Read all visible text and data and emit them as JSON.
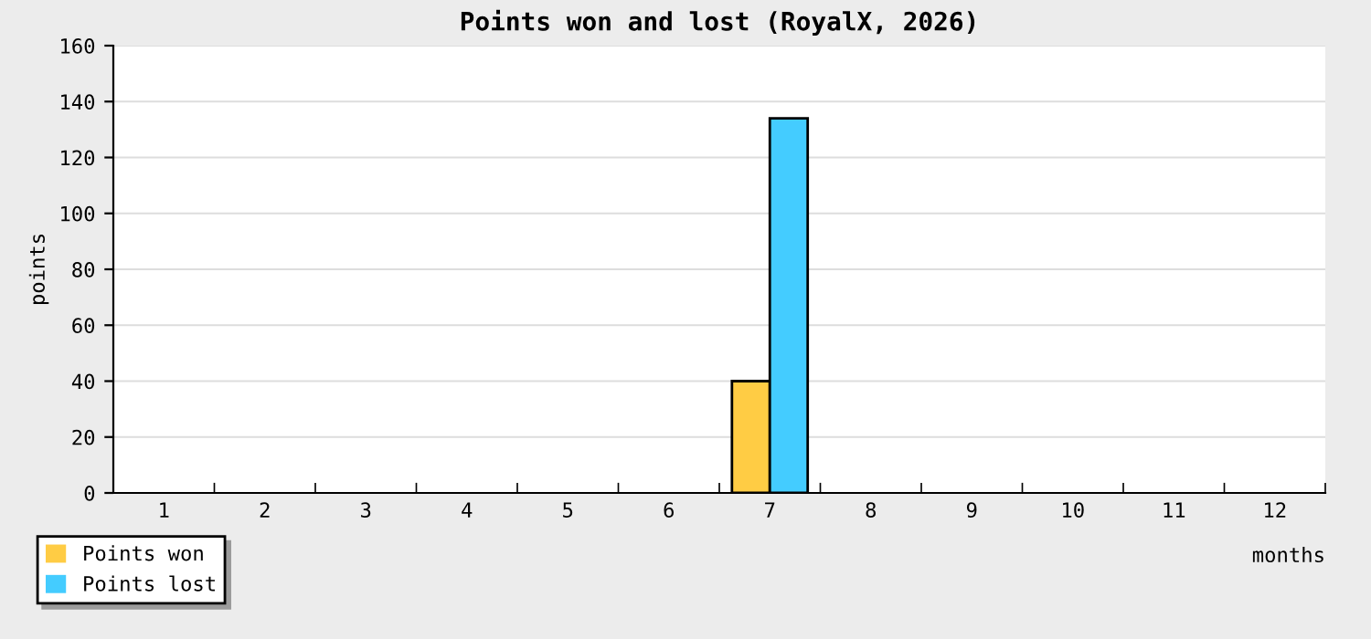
{
  "chart_data": {
    "type": "bar",
    "title": "Points won and lost (RoyalX, 2026)",
    "xlabel": "months",
    "ylabel": "points",
    "categories": [
      "1",
      "2",
      "3",
      "4",
      "5",
      "6",
      "7",
      "8",
      "9",
      "10",
      "11",
      "12"
    ],
    "series": [
      {
        "name": "Points won",
        "color": "#ffcc44",
        "values": [
          0,
          0,
          0,
          0,
          0,
          0,
          40,
          0,
          0,
          0,
          0,
          0
        ]
      },
      {
        "name": "Points lost",
        "color": "#44ccff",
        "values": [
          0,
          0,
          0,
          0,
          0,
          0,
          134,
          0,
          0,
          0,
          0,
          0
        ]
      }
    ],
    "ylim": [
      0,
      160
    ],
    "yticks": [
      0,
      20,
      40,
      60,
      80,
      100,
      120,
      140,
      160
    ],
    "grid": "y",
    "legend": "bottom left"
  }
}
